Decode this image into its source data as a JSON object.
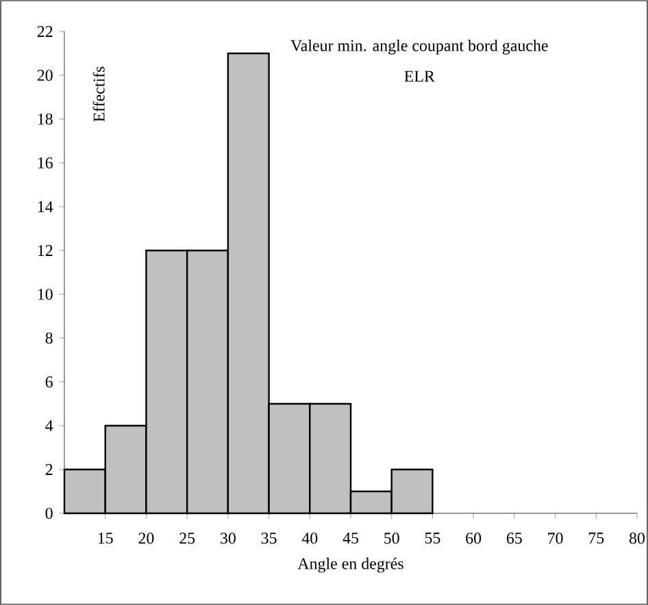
{
  "chart_data": {
    "type": "histogram",
    "title": "Valeur min. angle coupant bord gauche",
    "subtitle": "ELR",
    "xlabel": "Angle en degrés",
    "ylabel": "Effectifs",
    "bins": [
      10,
      15,
      20,
      25,
      30,
      35,
      40,
      45,
      50,
      55,
      60
    ],
    "values": [
      2,
      4,
      12,
      12,
      21,
      5,
      5,
      1,
      2,
      0
    ],
    "color": "#c0c0c0",
    "xlim": [
      10,
      80
    ],
    "xticks": [
      15,
      20,
      25,
      30,
      35,
      40,
      45,
      50,
      55,
      60,
      65,
      70,
      75,
      80
    ],
    "ylim": [
      0,
      22
    ],
    "yticks": [
      0,
      2,
      4,
      6,
      8,
      10,
      12,
      14,
      16,
      18,
      20,
      22
    ],
    "grid": false
  }
}
